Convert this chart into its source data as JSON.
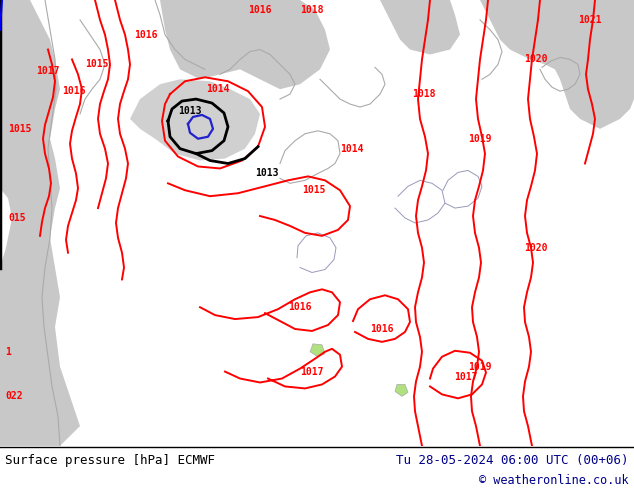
{
  "title_left": "Surface pressure [hPa] ECMWF",
  "title_right": "Tu 28-05-2024 06:00 UTC (00+06)",
  "copyright": "© weatheronline.co.uk",
  "land_color": "#b0e080",
  "sea_color": "#c8c8c8",
  "red": "#ff0000",
  "black": "#000000",
  "blue": "#2222cc",
  "coast_color": "#aaaaaa",
  "border_color": "#9999bb",
  "footer_bg": "#ffffff",
  "footer_left_color": "#000000",
  "footer_right_color": "#00008b"
}
